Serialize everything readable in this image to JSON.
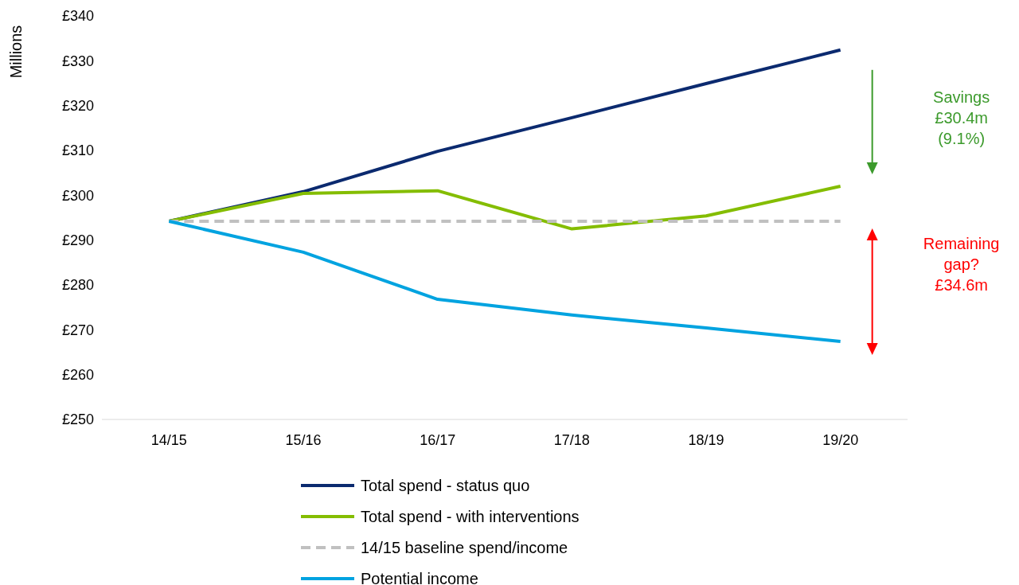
{
  "chart_data": {
    "type": "line",
    "ylabel": "Millions",
    "categories": [
      "14/15",
      "15/16",
      "16/17",
      "17/18",
      "18/19",
      "19/20"
    ],
    "series": [
      {
        "name": "Total spend - status quo",
        "color": "#0b2a6f",
        "values": [
          294.2,
          300.8,
          309.8,
          317.3,
          324.9,
          332.4
        ]
      },
      {
        "name": "Total spend - with interventions",
        "color": "#84bd00",
        "values": [
          294.2,
          300.4,
          301.0,
          292.5,
          295.4,
          302.0
        ]
      },
      {
        "name": "14/15 baseline spend/income",
        "color": "#c0c0c0",
        "line_style": "dashed",
        "values": [
          294.2,
          294.2,
          294.2,
          294.2,
          294.2,
          294.2
        ]
      },
      {
        "name": "Potential income",
        "color": "#00a3e0",
        "values": [
          294.2,
          287.3,
          276.8,
          273.3,
          270.4,
          267.4
        ]
      }
    ],
    "ylim": [
      250,
      340
    ],
    "yticks": [
      {
        "value": 250,
        "label": "£250"
      },
      {
        "value": 260,
        "label": "£260"
      },
      {
        "value": 270,
        "label": "£270"
      },
      {
        "value": 280,
        "label": "£280"
      },
      {
        "value": 290,
        "label": "£290"
      },
      {
        "value": 300,
        "label": "£300"
      },
      {
        "value": 310,
        "label": "£310"
      },
      {
        "value": 320,
        "label": "£320"
      },
      {
        "value": 330,
        "label": "£330"
      },
      {
        "value": 340,
        "label": "£340"
      }
    ],
    "grid": false,
    "legend": "bottom",
    "line_style": "solid",
    "annotations": [
      "Savings £30.4m (9.1%)",
      "Remaining gap? £34.6m"
    ]
  }
}
